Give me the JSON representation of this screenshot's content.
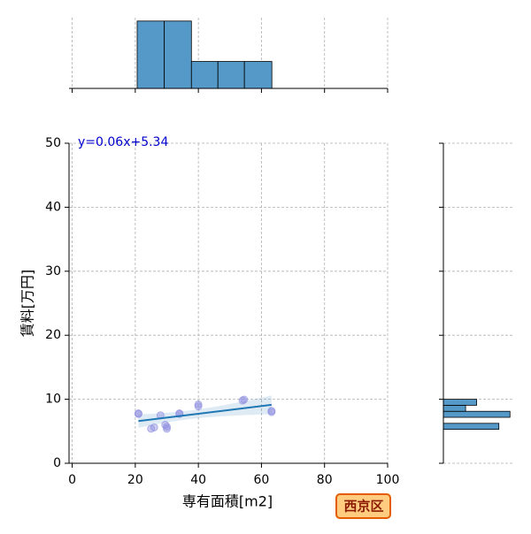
{
  "chart_data": [
    {
      "type": "scatter",
      "xlabel": "専有面積[m2]",
      "ylabel": "賃料[万円]",
      "x": [
        21,
        21,
        25,
        26,
        28,
        29.5,
        30,
        30,
        34,
        34,
        40,
        40,
        54,
        54.5,
        63.2,
        63.2
      ],
      "y": [
        7.8,
        7.7,
        5.4,
        5.6,
        7.5,
        6.0,
        5.4,
        5.7,
        7.7,
        7.8,
        9.2,
        8.9,
        9.8,
        9.95,
        8.0,
        8.2
      ],
      "color": "#8c8ce0",
      "line_color": "#1f77b4",
      "fit": {
        "label": "y=0.06x+5.34",
        "slope": 0.06,
        "intercept": 5.34,
        "color": "#0000cc"
      },
      "xlim": [
        -1,
        100
      ],
      "xticks": [
        0,
        20,
        40,
        60,
        80,
        100
      ],
      "ylim": [
        0,
        50
      ],
      "yticks": [
        0,
        10,
        20,
        30,
        40,
        50
      ],
      "grid": true
    },
    {
      "type": "histogram",
      "orientation": "vertical",
      "bins": [
        20.6,
        29.2,
        37.8,
        46.2,
        54.6,
        63.3
      ],
      "values": [
        5,
        5,
        2,
        2,
        2
      ],
      "color": "#5599c8",
      "xlim": [
        -1,
        100
      ],
      "xticks": [
        0,
        20,
        40,
        60,
        80,
        100
      ],
      "ylim": [
        0,
        5.25
      ],
      "grid": true
    },
    {
      "type": "histogram",
      "orientation": "horizontal",
      "bins": [
        5.3,
        6.24,
        7.18,
        8.12,
        9.06,
        10.0
      ],
      "values": [
        5,
        0,
        6,
        2,
        3
      ],
      "color": "#5599c8",
      "xlim": [
        0,
        6.3
      ],
      "ylim": [
        0,
        50
      ],
      "yticks": [
        0,
        10,
        20,
        30,
        40,
        50
      ],
      "grid": true
    }
  ],
  "badge": "西京区"
}
